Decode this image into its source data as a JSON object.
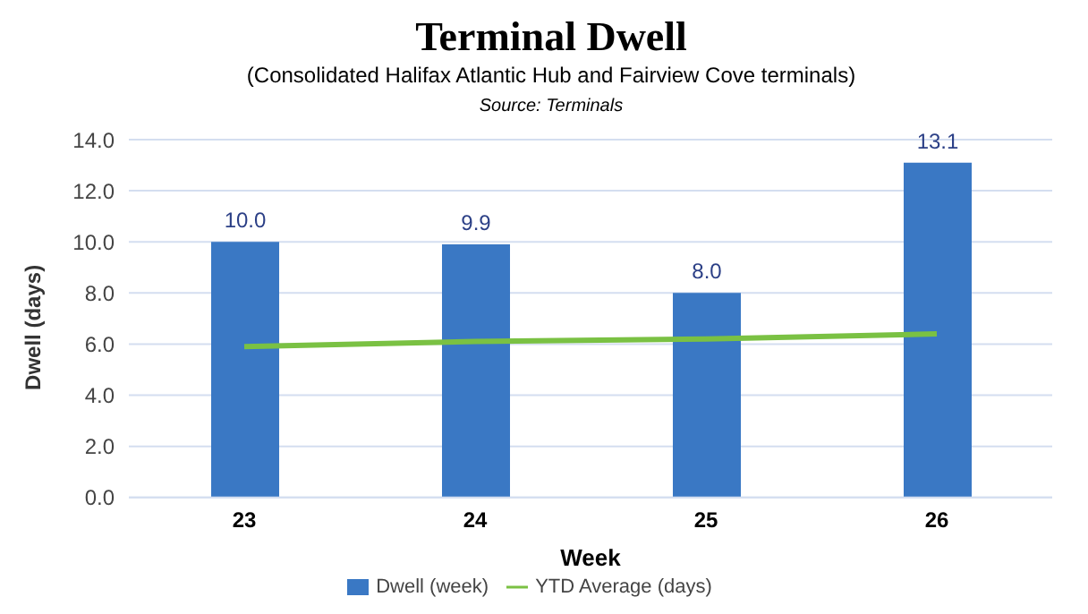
{
  "chart_data": {
    "type": "bar",
    "title": "Terminal Dwell",
    "subtitle": "(Consolidated Halifax Atlantic Hub and Fairview Cove terminals)",
    "annotations": [
      "Source: Terminals"
    ],
    "xlabel": "Week",
    "ylabel": "Dwell (days)",
    "categories": [
      "23",
      "24",
      "25",
      "26"
    ],
    "series": [
      {
        "name": "Dwell (week)",
        "color": "#3a78c4",
        "values": [
          10.0,
          9.9,
          8.0,
          13.1
        ],
        "value_labels": [
          "10.0",
          "9.9",
          "8.0",
          "13.1"
        ]
      },
      {
        "name": "YTD Average (days)",
        "type": "line",
        "color": "#7ac143",
        "values": [
          5.9,
          6.1,
          6.2,
          6.4
        ]
      }
    ],
    "ylim": [
      0,
      14
    ],
    "yticks": [
      {
        "value": 0,
        "label": "0.0"
      },
      {
        "value": 2,
        "label": "2.0"
      },
      {
        "value": 4,
        "label": "4.0"
      },
      {
        "value": 6,
        "label": "6.0"
      },
      {
        "value": 8,
        "label": "8.0"
      },
      {
        "value": 10,
        "label": "10.0"
      },
      {
        "value": 12,
        "label": "12.0"
      },
      {
        "value": 14,
        "label": "14.0"
      }
    ],
    "grid": "y",
    "legend": "bottom",
    "marker": "none",
    "line_style": "solid"
  }
}
